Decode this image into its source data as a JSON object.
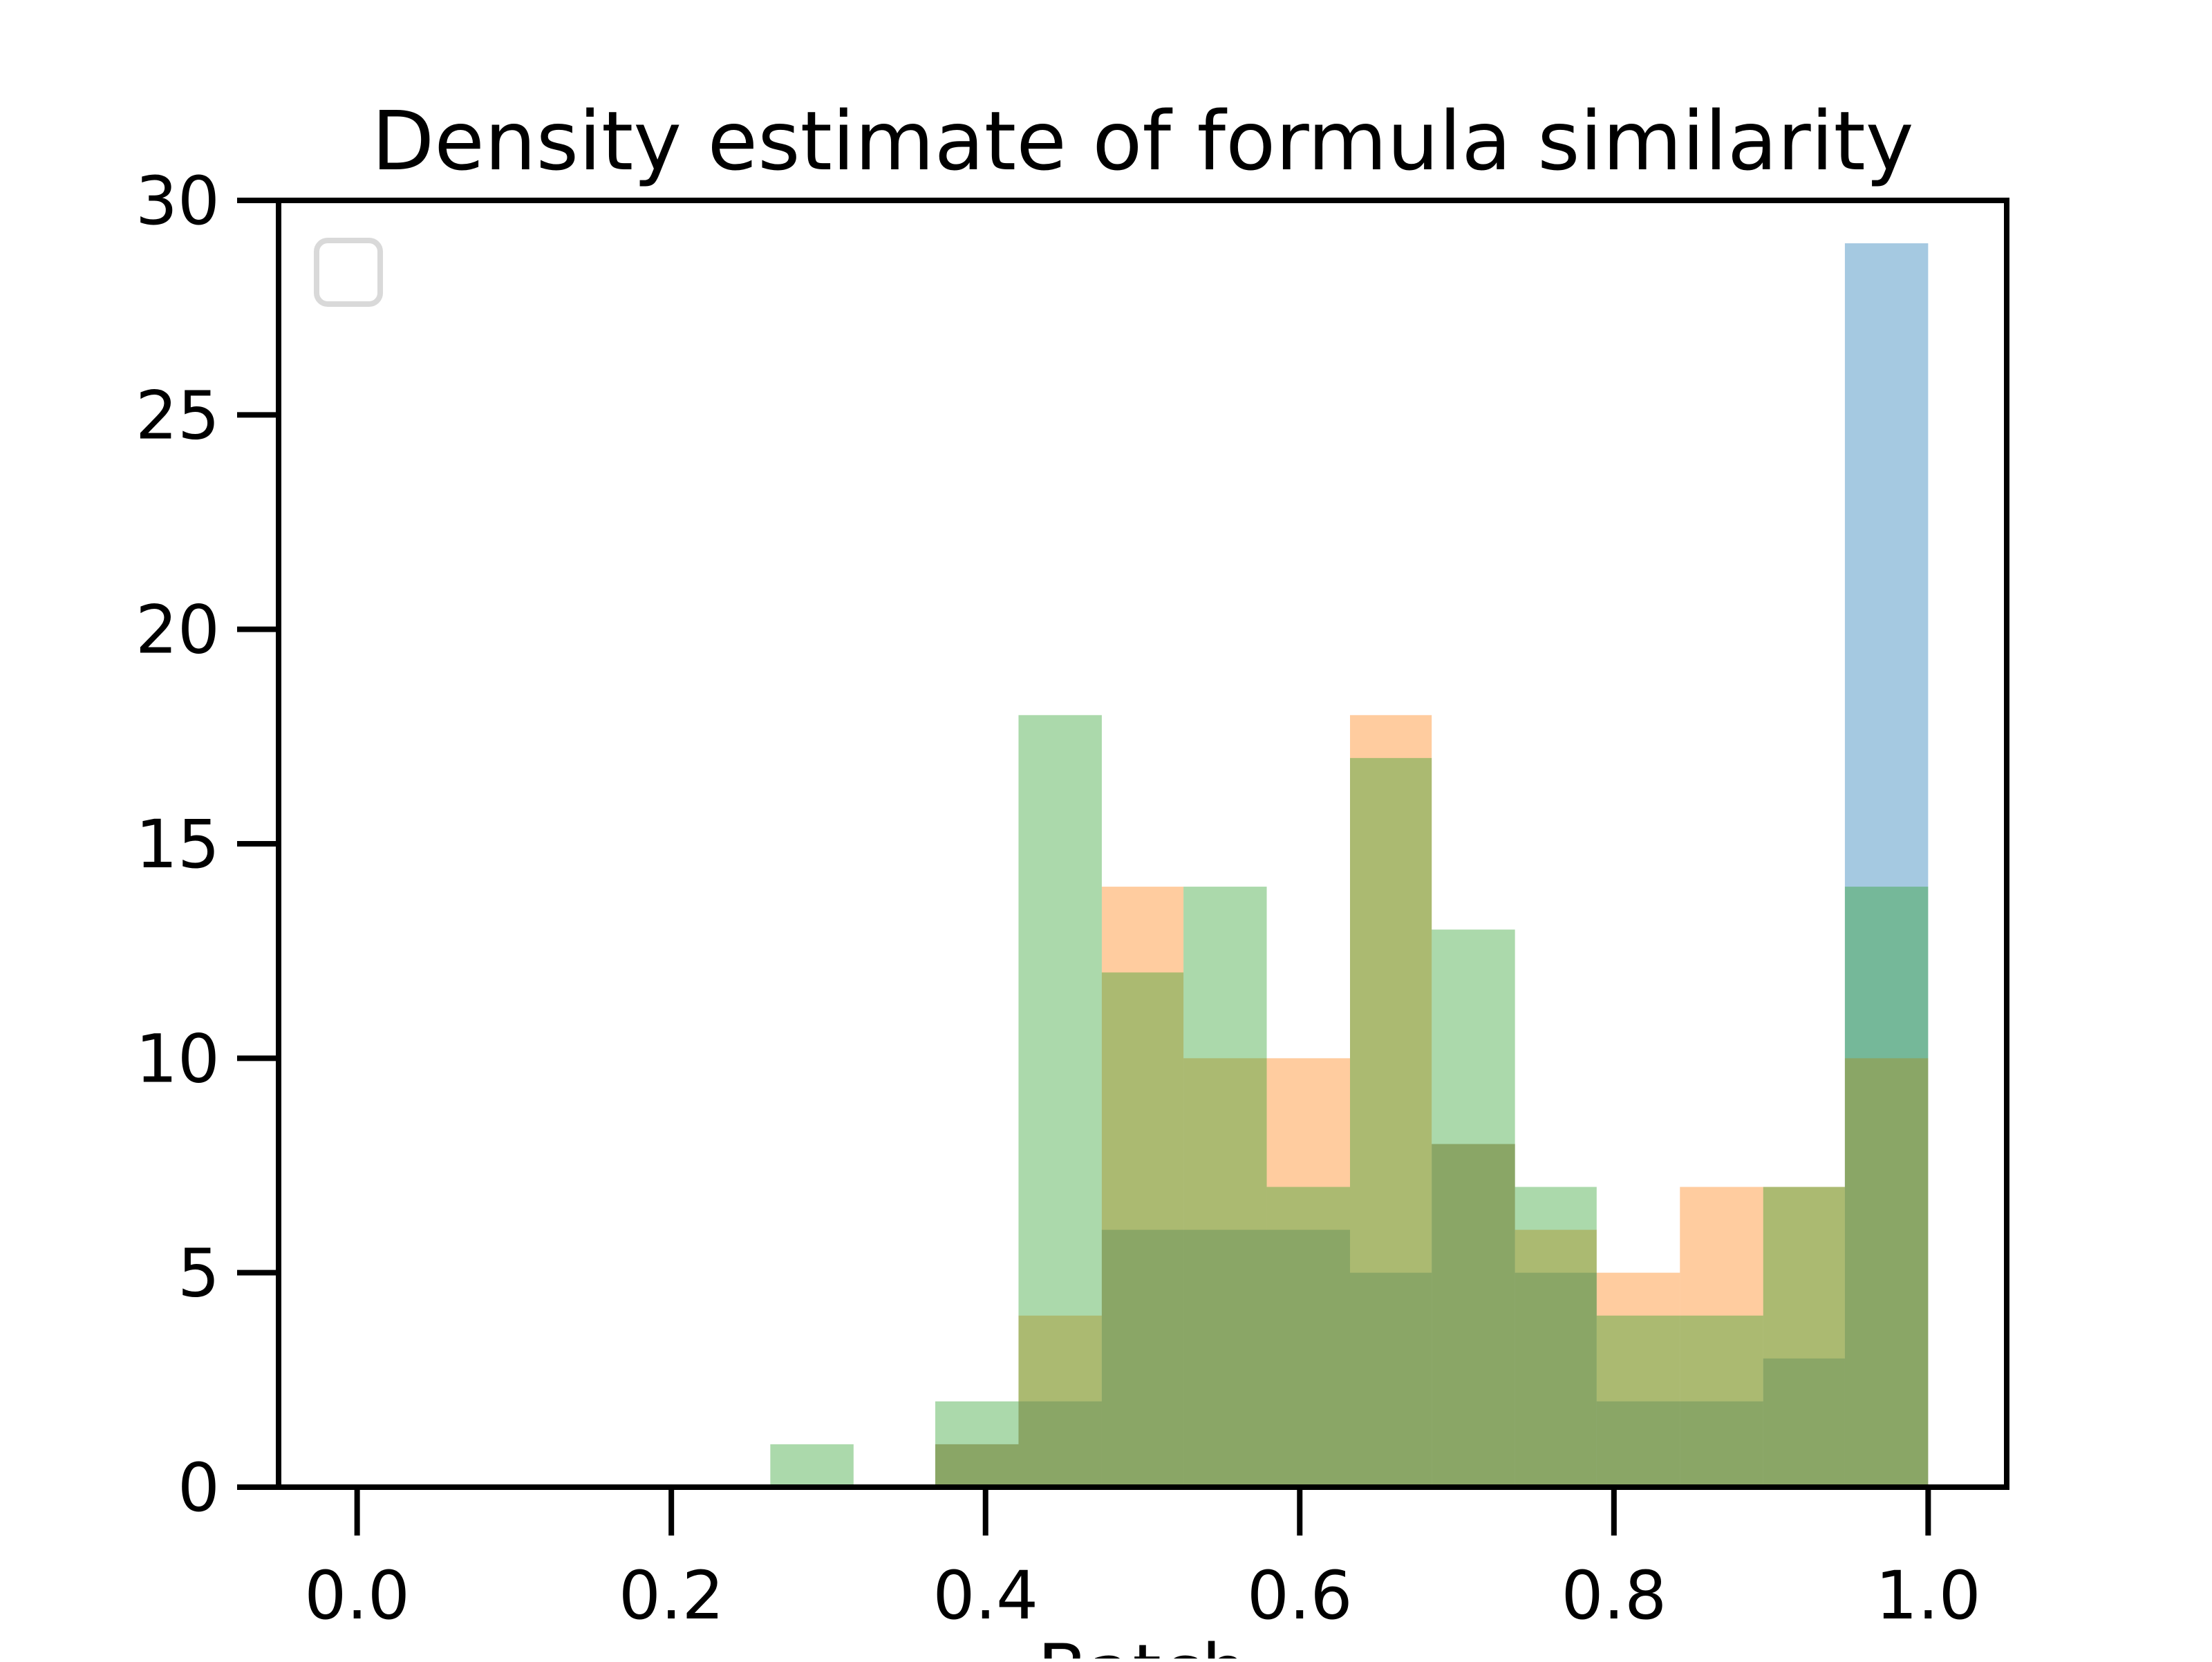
{
  "chart_data": {
    "type": "bar",
    "title": "Density estimate of formula similarity",
    "xlabel": "Batch",
    "ylabel": "",
    "xlim": [
      -0.05,
      1.05
    ],
    "ylim": [
      0,
      30
    ],
    "xticks": [
      "0.0",
      "0.2",
      "0.4",
      "0.6",
      "0.8",
      "1.0"
    ],
    "yticks": [
      "0",
      "5",
      "10",
      "15",
      "20",
      "25",
      "30"
    ],
    "bin_edges": [
      0.263,
      0.316,
      0.368,
      0.421,
      0.474,
      0.526,
      0.579,
      0.632,
      0.684,
      0.737,
      0.789,
      0.842,
      0.895,
      0.947,
      1.0
    ],
    "legend": {
      "placement": "upper left",
      "entries": []
    },
    "grid": false,
    "colors": {
      "blue": "#1f77b4",
      "orange": "#ff7f0e",
      "green": "#2ca02c"
    },
    "series": [
      {
        "color": "#1f77b4",
        "values": [
          0,
          0,
          1,
          2,
          6,
          6,
          6,
          5,
          8,
          5,
          2,
          2,
          3,
          29
        ]
      },
      {
        "color": "#ff7f0e",
        "values": [
          0,
          0,
          1,
          4,
          14,
          10,
          10,
          18,
          8,
          6,
          5,
          7,
          7,
          10
        ]
      },
      {
        "color": "#2ca02c",
        "values": [
          1,
          0,
          2,
          18,
          12,
          14,
          7,
          17,
          13,
          7,
          4,
          4,
          7,
          14
        ]
      }
    ]
  }
}
